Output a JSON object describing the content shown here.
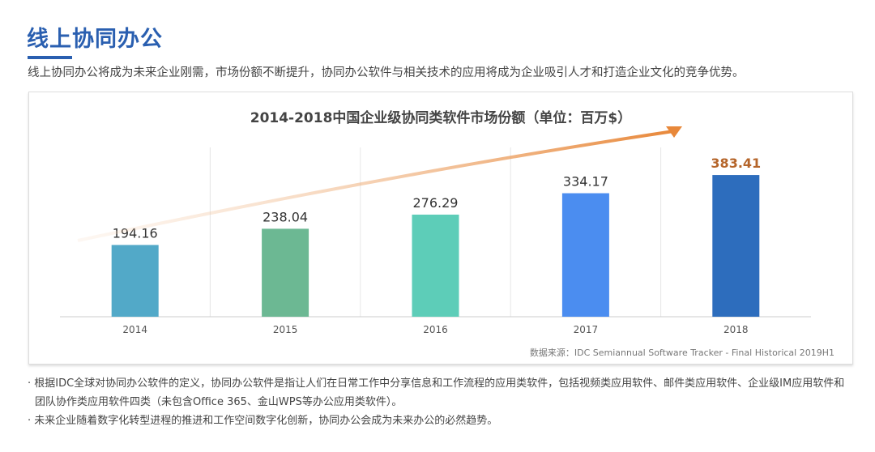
{
  "header": {
    "title": "线上协同办公",
    "subtitle": "线上协同办公将成为未来企业刚需，市场份额不断提升，协同办公软件与相关技术的应用将成为企业吸引人才和打造企业文化的竞争优势。"
  },
  "chart_data": {
    "type": "bar",
    "title": "2014-2018中国企业级协同类软件市场份额（单位：百万$）",
    "categories": [
      "2014",
      "2015",
      "2016",
      "2017",
      "2018"
    ],
    "values": [
      194.16,
      238.04,
      276.29,
      334.17,
      383.41
    ],
    "labels": [
      "194.16",
      "238.04",
      "276.29",
      "334.17",
      "383.41"
    ],
    "colors": [
      "#52a9c8",
      "#6cb893",
      "#5dcdb8",
      "#4b8df0",
      "#2d6dbd"
    ],
    "highlight_color": "#b5652a",
    "ylim": [
      0,
      480
    ],
    "xlabel": "",
    "ylabel": "",
    "grid": "vertical",
    "trend_arrow": true
  },
  "source": "数据来源：IDC Semiannual Software Tracker - Final Historical 2019H1",
  "notes": [
    "· 根据IDC全球对协同办公软件的定义，协同办公软件是指让人们在日常工作中分享信息和工作流程的应用类软件，包括视频类应用软件、邮件类应用软件、企业级IM应用软件和团队协作类应用软件四类（未包含Office 365、金山WPS等办公应用类软件）。",
    "· 未来企业随着数字化转型进程的推进和工作空间数字化创新，协同办公会成为未来办公的必然趋势。"
  ]
}
